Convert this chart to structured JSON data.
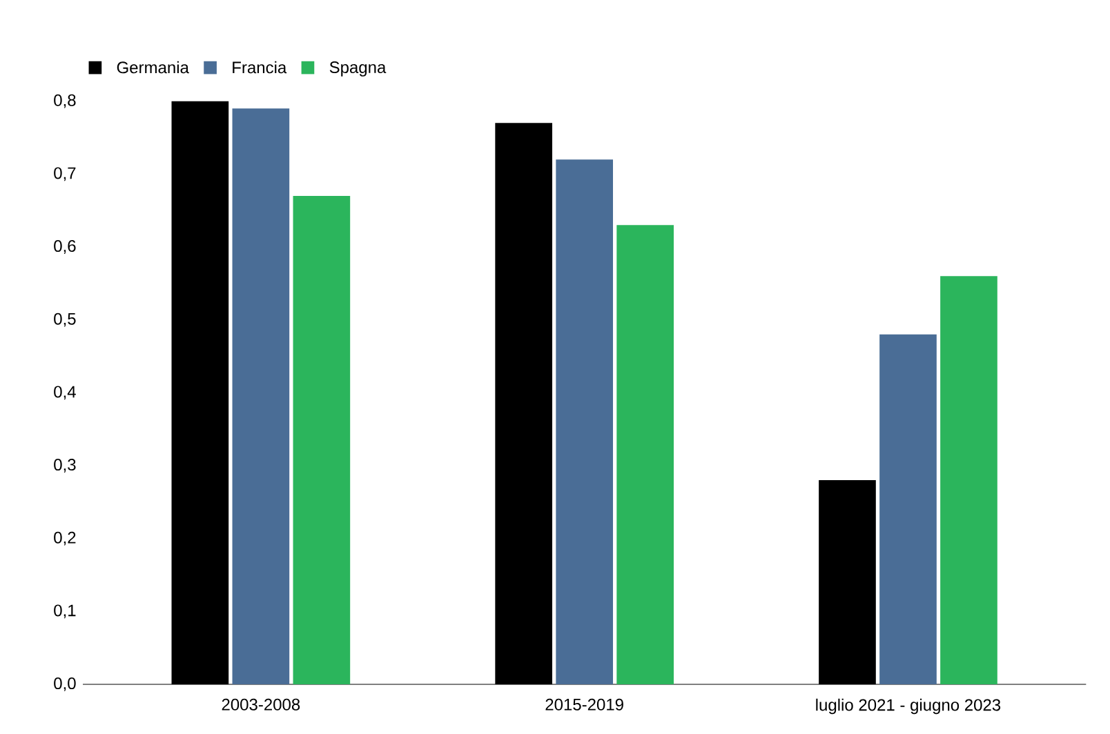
{
  "chart_data": {
    "type": "bar",
    "categories": [
      "2003-2008",
      "2015-2019",
      "luglio 2021 - giugno 2023"
    ],
    "series": [
      {
        "name": "Germania",
        "color": "#000000",
        "values": [
          0.8,
          0.77,
          0.28
        ]
      },
      {
        "name": "Francia",
        "color": "#4a6d96",
        "values": [
          0.79,
          0.72,
          0.48
        ]
      },
      {
        "name": "Spagna",
        "color": "#2bb55c",
        "values": [
          0.67,
          0.63,
          0.56
        ]
      }
    ],
    "ylim": [
      0,
      0.8
    ],
    "yticks": [
      {
        "value": 0,
        "label": "0,0"
      },
      {
        "value": 0.1,
        "label": "0,1"
      },
      {
        "value": 0.2,
        "label": "0,2"
      },
      {
        "value": 0.3,
        "label": "0,3"
      },
      {
        "value": 0.4,
        "label": "0,4"
      },
      {
        "value": 0.5,
        "label": "0,5"
      },
      {
        "value": 0.6,
        "label": "0,6"
      },
      {
        "value": 0.7,
        "label": "0,7"
      },
      {
        "value": 0.8,
        "label": "0,8"
      }
    ],
    "grid": false,
    "legend": "top left"
  }
}
